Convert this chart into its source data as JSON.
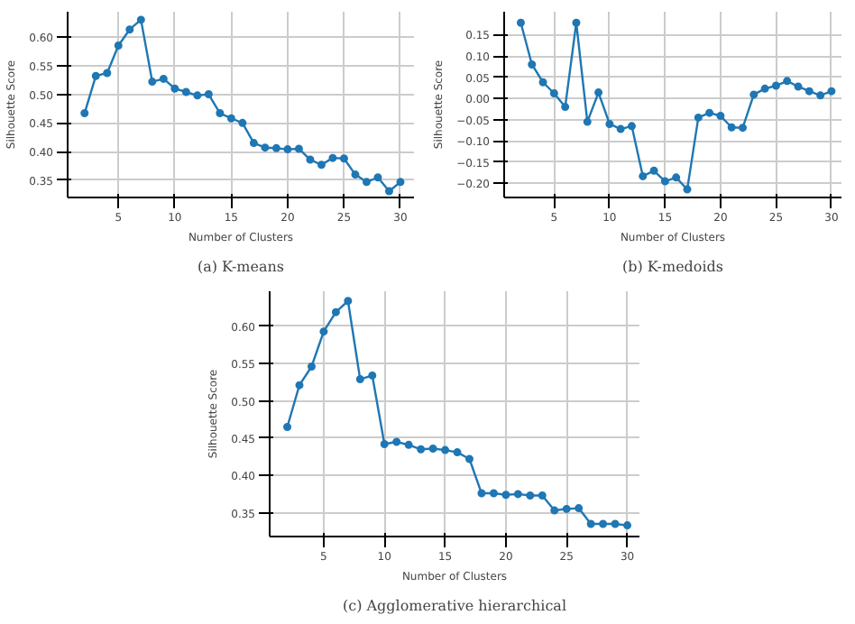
{
  "chart_data": [
    {
      "type": "line",
      "xlabel": "Number of Clusters",
      "ylabel": "Silhouette Score",
      "annotations": [
        "(a) K-means"
      ],
      "x": [
        2,
        3,
        4,
        5,
        6,
        7,
        8,
        9,
        10,
        11,
        12,
        13,
        14,
        15,
        16,
        17,
        18,
        19,
        20,
        21,
        22,
        23,
        24,
        25,
        26,
        27,
        28,
        29,
        30
      ],
      "series": [
        {
          "color": "#1f77b4",
          "values": [
            0.467,
            0.532,
            0.537,
            0.585,
            0.613,
            0.63,
            0.522,
            0.527,
            0.51,
            0.504,
            0.498,
            0.5,
            0.467,
            0.458,
            0.45,
            0.415,
            0.407,
            0.406,
            0.404,
            0.405,
            0.386,
            0.377,
            0.389,
            0.388,
            0.36,
            0.347,
            0.355,
            0.331,
            0.347
          ]
        }
      ],
      "xlim": [
        0.5,
        31.2
      ],
      "ylim": [
        0.32,
        0.644
      ],
      "xticks": [
        5,
        10,
        15,
        20,
        25,
        30
      ],
      "yticks": [
        0.35,
        {
          "value": 0.4,
          "label": "0.40"
        },
        0.45,
        {
          "value": 0.5,
          "label": "0.50"
        },
        0.55,
        {
          "value": 0.6,
          "label": "0.60"
        }
      ],
      "grid": true,
      "marker": "circle",
      "line_style": "solid"
    },
    {
      "type": "line",
      "xlabel": "Number of Clusters",
      "ylabel": "Silhouette Score",
      "annotations": [
        "(b) K-medoids"
      ],
      "x": [
        2,
        3,
        4,
        5,
        6,
        7,
        8,
        9,
        10,
        11,
        12,
        13,
        14,
        15,
        16,
        17,
        18,
        19,
        20,
        21,
        22,
        23,
        24,
        25,
        26,
        27,
        28,
        29,
        30
      ],
      "series": [
        {
          "color": "#1f77b4",
          "values": [
            0.178,
            0.08,
            0.038,
            0.012,
            -0.02,
            0.178,
            -0.055,
            0.014,
            -0.06,
            -0.072,
            -0.065,
            -0.183,
            -0.17,
            -0.195,
            -0.186,
            -0.214,
            -0.045,
            -0.034,
            -0.041,
            -0.068,
            -0.069,
            0.009,
            0.023,
            0.03,
            0.041,
            0.028,
            0.017,
            0.007,
            0.017
          ]
        }
      ],
      "xlim": [
        0.5,
        30.9
      ],
      "ylim": [
        -0.233,
        0.204
      ],
      "xticks": [
        5,
        10,
        15,
        20,
        25,
        30
      ],
      "yticks": [
        {
          "value": -0.2,
          "label": "−0.20"
        },
        {
          "value": -0.15,
          "label": "−0.15"
        },
        {
          "value": -0.1,
          "label": "−0.10"
        },
        {
          "value": -0.05,
          "label": "−0.05"
        },
        {
          "value": 0,
          "label": "0.00"
        },
        0.05,
        {
          "value": 0.1,
          "label": "0.10"
        },
        0.15
      ],
      "grid": true,
      "marker": "circle",
      "line_style": "solid"
    },
    {
      "type": "line",
      "xlabel": "Number of Clusters",
      "ylabel": "Silhouette Score",
      "annotations": [
        "(c) Agglomerative hierarchical"
      ],
      "x": [
        2,
        3,
        4,
        5,
        6,
        7,
        8,
        9,
        10,
        11,
        12,
        13,
        14,
        15,
        16,
        17,
        18,
        19,
        20,
        21,
        22,
        23,
        24,
        25,
        26,
        27,
        28,
        29,
        30
      ],
      "series": [
        {
          "color": "#1f77b4",
          "values": [
            0.465,
            0.521,
            0.546,
            0.593,
            0.619,
            0.634,
            0.529,
            0.534,
            0.442,
            0.445,
            0.441,
            0.435,
            0.436,
            0.434,
            0.431,
            0.422,
            0.376,
            0.376,
            0.374,
            0.375,
            0.373,
            0.373,
            0.353,
            0.355,
            0.356,
            0.335,
            0.335,
            0.335,
            0.333
          ]
        }
      ],
      "xlim": [
        0.55,
        31
      ],
      "ylim": [
        0.318,
        0.647
      ],
      "xticks": [
        5,
        10,
        15,
        20,
        25,
        30
      ],
      "yticks": [
        0.35,
        {
          "value": 0.4,
          "label": "0.40"
        },
        0.45,
        {
          "value": 0.5,
          "label": "0.50"
        },
        0.55,
        {
          "value": 0.6,
          "label": "0.60"
        }
      ],
      "grid": true,
      "marker": "circle",
      "line_style": "solid"
    }
  ]
}
